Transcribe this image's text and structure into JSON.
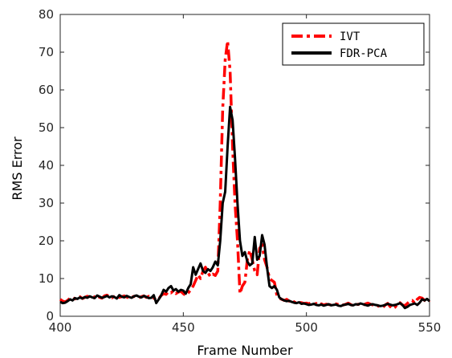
{
  "chart_data": {
    "type": "line",
    "title": "",
    "xlabel": "Frame Number",
    "ylabel": "RMS Error",
    "xlim": [
      400,
      550
    ],
    "ylim": [
      0,
      80
    ],
    "xticks": [
      400,
      450,
      500,
      550
    ],
    "yticks": [
      0,
      10,
      20,
      30,
      40,
      50,
      60,
      70,
      80
    ],
    "grid": false,
    "legend_position": "top-right",
    "series": [
      {
        "name": "IVT",
        "color": "#ff0000",
        "style": "dash-dot",
        "x": [
          400,
          401,
          402,
          403,
          404,
          405,
          406,
          407,
          408,
          409,
          410,
          411,
          412,
          413,
          414,
          415,
          416,
          417,
          418,
          419,
          420,
          421,
          422,
          423,
          424,
          425,
          426,
          427,
          428,
          429,
          430,
          431,
          432,
          433,
          434,
          435,
          436,
          437,
          438,
          439,
          440,
          441,
          442,
          443,
          444,
          445,
          446,
          447,
          448,
          449,
          450,
          451,
          452,
          453,
          454,
          455,
          456,
          457,
          458,
          459,
          460,
          461,
          462,
          463,
          464,
          465,
          466,
          467,
          468,
          469,
          470,
          471,
          472,
          473,
          474,
          475,
          476,
          477,
          478,
          479,
          480,
          481,
          482,
          483,
          484,
          485,
          486,
          487,
          488,
          489,
          490,
          491,
          492,
          493,
          494,
          495,
          496,
          497,
          498,
          499,
          500,
          501,
          502,
          503,
          504,
          505,
          506,
          507,
          508,
          509,
          510,
          511,
          512,
          513,
          514,
          515,
          516,
          517,
          518,
          519,
          520,
          521,
          522,
          523,
          524,
          525,
          526,
          527,
          528,
          529,
          530,
          531,
          532,
          533,
          534,
          535,
          536,
          537,
          538,
          539,
          540,
          541,
          542,
          543,
          544,
          545,
          546,
          547,
          548,
          549,
          550
        ],
        "values": [
          4.5,
          4.0,
          3.8,
          4.2,
          4.8,
          5.0,
          4.6,
          4.9,
          5.2,
          4.7,
          5.0,
          5.3,
          5.1,
          4.6,
          5.2,
          5.5,
          5.0,
          4.8,
          5.4,
          5.6,
          5.1,
          4.9,
          5.3,
          5.5,
          5.0,
          5.2,
          5.4,
          5.1,
          4.8,
          5.0,
          5.3,
          5.1,
          4.9,
          5.2,
          5.4,
          5.0,
          5.3,
          5.1,
          4.8,
          4.4,
          4.6,
          5.5,
          6.0,
          5.8,
          6.5,
          6.2,
          6.8,
          6.0,
          6.4,
          6.6,
          6.0,
          5.5,
          6.2,
          7.0,
          8.0,
          9.5,
          11.0,
          10.0,
          12.0,
          13.0,
          11.5,
          10.5,
          11.2,
          10.8,
          12.0,
          30.0,
          55.0,
          68.0,
          73.0,
          65.0,
          45.0,
          30.0,
          20.0,
          6.0,
          8.0,
          9.0,
          15.0,
          17.5,
          15.0,
          12.0,
          11.0,
          18.0,
          19.0,
          15.0,
          13.0,
          10.0,
          9.5,
          9.0,
          5.5,
          4.8,
          4.5,
          4.2,
          4.5,
          4.0,
          4.3,
          3.8,
          3.5,
          3.7,
          3.6,
          3.4,
          3.5,
          3.3,
          3.6,
          3.2,
          3.4,
          3.1,
          3.3,
          3.0,
          3.2,
          3.1,
          3.0,
          3.2,
          3.3,
          3.1,
          2.9,
          3.0,
          3.2,
          3.5,
          3.1,
          2.8,
          3.0,
          3.2,
          3.1,
          2.9,
          3.3,
          3.5,
          3.2,
          3.0,
          2.4,
          2.8,
          2.5,
          2.3,
          3.0,
          3.4,
          2.6,
          2.0,
          2.4,
          3.2,
          3.6,
          3.0,
          2.8,
          3.4,
          4.0,
          4.2,
          3.5,
          4.5,
          5.0,
          4.8,
          4.2,
          3.8,
          4.3
        ],
        "x_note": ""
      },
      {
        "name": "FDR-PCA",
        "color": "#000000",
        "style": "solid",
        "x": [
          400,
          401,
          402,
          403,
          404,
          405,
          406,
          407,
          408,
          409,
          410,
          411,
          412,
          413,
          414,
          415,
          416,
          417,
          418,
          419,
          420,
          421,
          422,
          423,
          424,
          425,
          426,
          427,
          428,
          429,
          430,
          431,
          432,
          433,
          434,
          435,
          436,
          437,
          438,
          439,
          440,
          441,
          442,
          443,
          444,
          445,
          446,
          447,
          448,
          449,
          450,
          451,
          452,
          453,
          454,
          455,
          456,
          457,
          458,
          459,
          460,
          461,
          462,
          463,
          464,
          465,
          466,
          467,
          468,
          469,
          470,
          471,
          472,
          473,
          474,
          475,
          476,
          477,
          478,
          479,
          480,
          481,
          482,
          483,
          484,
          485,
          486,
          487,
          488,
          489,
          490,
          491,
          492,
          493,
          494,
          495,
          496,
          497,
          498,
          499,
          500,
          501,
          502,
          503,
          504,
          505,
          506,
          507,
          508,
          509,
          510,
          511,
          512,
          513,
          514,
          515,
          516,
          517,
          518,
          519,
          520,
          521,
          522,
          523,
          524,
          525,
          526,
          527,
          528,
          529,
          530,
          531,
          532,
          533,
          534,
          535,
          536,
          537,
          538,
          539,
          540,
          541,
          542,
          543,
          544,
          545,
          546,
          547,
          548,
          549,
          550
        ],
        "values": [
          3.8,
          3.5,
          3.6,
          4.0,
          4.5,
          4.2,
          4.8,
          4.6,
          5.0,
          4.7,
          5.1,
          4.9,
          5.3,
          5.0,
          4.8,
          5.5,
          5.2,
          4.9,
          5.1,
          5.4,
          5.0,
          5.3,
          5.1,
          4.7,
          5.6,
          5.2,
          5.0,
          5.4,
          5.1,
          4.9,
          5.3,
          5.5,
          5.2,
          5.0,
          5.4,
          5.1,
          4.8,
          4.9,
          5.6,
          3.5,
          4.5,
          5.5,
          7.0,
          6.5,
          7.5,
          8.0,
          6.8,
          7.2,
          6.5,
          7.0,
          6.8,
          6.0,
          7.5,
          8.5,
          13.0,
          11.0,
          12.5,
          14.0,
          12.0,
          11.5,
          12.5,
          12.0,
          13.0,
          14.5,
          13.5,
          20.0,
          30.0,
          33.0,
          45.0,
          55.5,
          52.0,
          42.0,
          30.0,
          20.0,
          16.0,
          17.0,
          14.5,
          13.5,
          14.0,
          21.0,
          15.0,
          16.0,
          21.5,
          19.0,
          13.0,
          8.0,
          7.5,
          8.0,
          7.0,
          5.0,
          4.5,
          4.2,
          4.0,
          4.1,
          3.8,
          3.6,
          3.5,
          3.7,
          3.3,
          3.4,
          3.2,
          3.0,
          3.1,
          3.3,
          3.0,
          2.9,
          3.1,
          2.8,
          3.0,
          3.2,
          2.9,
          3.0,
          3.1,
          2.8,
          2.7,
          3.0,
          3.1,
          3.3,
          3.0,
          2.9,
          3.2,
          3.1,
          3.4,
          3.2,
          3.0,
          2.8,
          3.1,
          3.2,
          3.0,
          2.9,
          2.7,
          2.8,
          3.0,
          3.3,
          3.1,
          2.9,
          3.0,
          3.2,
          3.5,
          3.0,
          2.2,
          2.5,
          3.0,
          3.2,
          3.4,
          3.0,
          3.6,
          4.5,
          4.2,
          4.6,
          4.0
        ],
        "x_note": ""
      }
    ]
  }
}
